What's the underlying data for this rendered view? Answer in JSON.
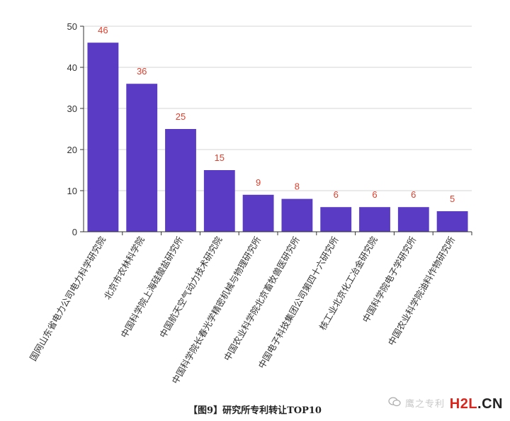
{
  "chart_data": {
    "type": "bar",
    "categories": [
      "国网山东省电力公司电力科学研究院",
      "北京市农林科学院",
      "中国科学院上海硅酸盐研究所",
      "中国航天空气动力技术研究院",
      "中国科学院长春光学精密机械与物理研究所",
      "中国农业科学院北京畜牧兽医研究所",
      "中国电子科技集团公司第四十六研究所",
      "核工业北京化工冶金研究院",
      "中国科学院电子学研究所",
      "中国农业科学院油料作物研究所"
    ],
    "values": [
      46,
      36,
      25,
      15,
      9,
      8,
      6,
      6,
      6,
      5
    ],
    "data_labels": [
      "46",
      "36",
      "25",
      "15",
      "9",
      "8",
      "6",
      "6",
      "6",
      "5"
    ],
    "ylim": [
      0,
      50
    ],
    "yticks": [
      "0",
      "10",
      "20",
      "30",
      "40",
      "50"
    ],
    "grid": true,
    "bar_color": "#5a3cc4",
    "label_color": "#e0402e",
    "title": "【图9】研究所专利转让TOP10"
  },
  "watermark": {
    "icon": "wechat-icon",
    "faded_text": "鹰之专利",
    "logo_h2l": "H2L",
    "logo_cn": ".CN",
    "logo_colors": {
      "h2l": "#d9261c",
      "cn": "#222222"
    }
  }
}
